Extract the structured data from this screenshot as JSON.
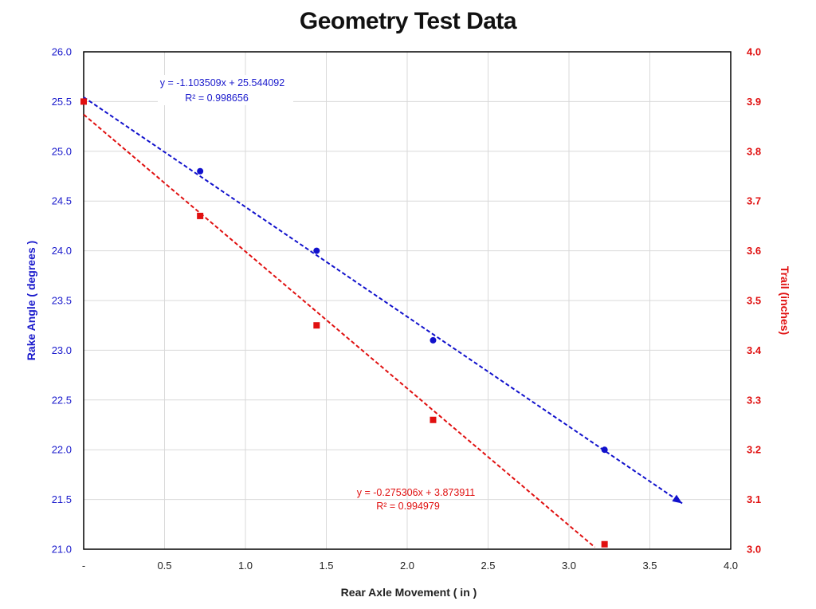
{
  "chart_data": {
    "type": "scatter",
    "title": "Geometry Test Data",
    "xlabel": "Rear Axle Movement  ( in )",
    "ylabel_left": "Rake Angle  ( degrees )",
    "ylabel_right": "Trail  (inches)",
    "xlim": [
      0,
      4.0
    ],
    "ylim_left": [
      21.0,
      26.0
    ],
    "ylim_right": [
      3.0,
      4.0
    ],
    "x_tick_labels": [
      "-",
      "0.5",
      "1.0",
      "1.5",
      "2.0",
      "2.5",
      "3.0",
      "3.5",
      "4.0"
    ],
    "y_left_tick_labels": [
      "21.0",
      "21.5",
      "22.0",
      "22.5",
      "23.0",
      "23.5",
      "24.0",
      "24.5",
      "25.0",
      "25.5",
      "26.0"
    ],
    "y_right_tick_labels": [
      "3.0",
      "3.1",
      "3.2",
      "3.3",
      "3.4",
      "3.5",
      "3.6",
      "3.7",
      "3.8",
      "3.9",
      "4.0"
    ],
    "grid": true,
    "series": [
      {
        "axis": "left",
        "color": "#1111cc",
        "marker": "circle",
        "x": [
          0,
          0.72,
          1.44,
          2.16,
          3.22
        ],
        "y": [
          25.5,
          24.8,
          24.0,
          23.1,
          22.0
        ],
        "trendline": {
          "slope": -1.103509,
          "intercept": 25.544092,
          "x_end": 3.7,
          "equation": "y = -1.103509x + 25.544092",
          "r2": "R² = 0.998656"
        }
      },
      {
        "axis": "right",
        "color": "#e01010",
        "marker": "square",
        "x": [
          0,
          0.72,
          1.44,
          2.16,
          3.22
        ],
        "y": [
          3.9,
          3.67,
          3.45,
          3.26,
          3.01
        ],
        "trendline": {
          "slope": -0.275306,
          "intercept": 3.873911,
          "x_end": 3.16,
          "equation": "y = -0.275306x + 3.873911",
          "r2": "R² = 0.994979"
        }
      }
    ]
  }
}
